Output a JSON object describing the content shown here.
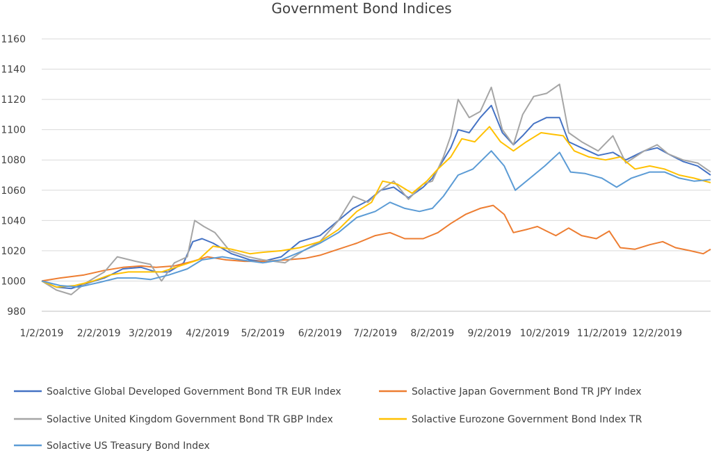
{
  "chart_data": {
    "type": "line",
    "title": "Government Bond Indices",
    "xlabel": "",
    "ylabel": "",
    "ylim": [
      980,
      1160
    ],
    "y_ticks": [
      980,
      1000,
      1020,
      1040,
      1060,
      1080,
      1100,
      1120,
      1140,
      1160
    ],
    "x_range": [
      "2019-01-02",
      "2019-12-31"
    ],
    "x_ticks": [
      "1/2/2019",
      "2/2/2019",
      "3/2/2019",
      "4/2/2019",
      "5/2/2019",
      "6/2/2019",
      "7/2/2019",
      "8/2/2019",
      "9/2/2019",
      "10/2/2019",
      "11/2/2019",
      "12/2/2019"
    ],
    "x_tick_dates": [
      "2019-01-02",
      "2019-02-02",
      "2019-03-02",
      "2019-04-02",
      "2019-05-02",
      "2019-06-02",
      "2019-07-02",
      "2019-08-02",
      "2019-09-02",
      "2019-10-02",
      "2019-11-02",
      "2019-12-02"
    ],
    "grid": "horizontal",
    "legend_position": "bottom",
    "series": [
      {
        "name": "Soalctive Global Developed Government Bond TR EUR Index",
        "color": "#4472C4",
        "points": [
          [
            "2019-01-02",
            1000
          ],
          [
            "2019-01-10",
            996
          ],
          [
            "2019-01-18",
            995
          ],
          [
            "2019-01-28",
            999
          ],
          [
            "2019-02-05",
            1002
          ],
          [
            "2019-02-15",
            1008
          ],
          [
            "2019-02-25",
            1009
          ],
          [
            "2019-03-05",
            1006
          ],
          [
            "2019-03-12",
            1006
          ],
          [
            "2019-03-20",
            1012
          ],
          [
            "2019-03-25",
            1026
          ],
          [
            "2019-03-30",
            1028
          ],
          [
            "2019-04-05",
            1025
          ],
          [
            "2019-04-15",
            1018
          ],
          [
            "2019-04-25",
            1014
          ],
          [
            "2019-05-02",
            1013
          ],
          [
            "2019-05-12",
            1016
          ],
          [
            "2019-05-22",
            1026
          ],
          [
            "2019-06-02",
            1030
          ],
          [
            "2019-06-12",
            1040
          ],
          [
            "2019-06-20",
            1048
          ],
          [
            "2019-06-28",
            1053
          ],
          [
            "2019-07-05",
            1060
          ],
          [
            "2019-07-12",
            1062
          ],
          [
            "2019-07-20",
            1055
          ],
          [
            "2019-07-28",
            1062
          ],
          [
            "2019-08-02",
            1068
          ],
          [
            "2019-08-08",
            1080
          ],
          [
            "2019-08-12",
            1088
          ],
          [
            "2019-08-16",
            1100
          ],
          [
            "2019-08-22",
            1098
          ],
          [
            "2019-08-28",
            1108
          ],
          [
            "2019-09-03",
            1116
          ],
          [
            "2019-09-09",
            1098
          ],
          [
            "2019-09-15",
            1090
          ],
          [
            "2019-09-20",
            1096
          ],
          [
            "2019-09-26",
            1104
          ],
          [
            "2019-10-03",
            1108
          ],
          [
            "2019-10-10",
            1108
          ],
          [
            "2019-10-15",
            1092
          ],
          [
            "2019-10-22",
            1088
          ],
          [
            "2019-10-31",
            1083
          ],
          [
            "2019-11-08",
            1085
          ],
          [
            "2019-11-15",
            1080
          ],
          [
            "2019-11-25",
            1086
          ],
          [
            "2019-12-02",
            1088
          ],
          [
            "2019-12-08",
            1084
          ],
          [
            "2019-12-16",
            1079
          ],
          [
            "2019-12-24",
            1076
          ],
          [
            "2019-12-31",
            1070
          ]
        ]
      },
      {
        "name": "Solactive Japan Government Bond TR JPY Index",
        "color": "#ED7D31",
        "points": [
          [
            "2019-01-02",
            1000
          ],
          [
            "2019-01-12",
            1002
          ],
          [
            "2019-01-25",
            1004
          ],
          [
            "2019-02-05",
            1007
          ],
          [
            "2019-02-15",
            1009
          ],
          [
            "2019-02-25",
            1010
          ],
          [
            "2019-03-05",
            1009
          ],
          [
            "2019-03-15",
            1010
          ],
          [
            "2019-03-25",
            1013
          ],
          [
            "2019-04-02",
            1016
          ],
          [
            "2019-04-12",
            1014
          ],
          [
            "2019-04-22",
            1013
          ],
          [
            "2019-05-02",
            1013
          ],
          [
            "2019-05-15",
            1014
          ],
          [
            "2019-05-25",
            1015
          ],
          [
            "2019-06-02",
            1017
          ],
          [
            "2019-06-12",
            1021
          ],
          [
            "2019-06-22",
            1025
          ],
          [
            "2019-07-02",
            1030
          ],
          [
            "2019-07-10",
            1032
          ],
          [
            "2019-07-18",
            1028
          ],
          [
            "2019-07-28",
            1028
          ],
          [
            "2019-08-05",
            1032
          ],
          [
            "2019-08-12",
            1038
          ],
          [
            "2019-08-20",
            1044
          ],
          [
            "2019-08-28",
            1048
          ],
          [
            "2019-09-04",
            1050
          ],
          [
            "2019-09-10",
            1044
          ],
          [
            "2019-09-15",
            1032
          ],
          [
            "2019-09-22",
            1034
          ],
          [
            "2019-09-28",
            1036
          ],
          [
            "2019-10-03",
            1033
          ],
          [
            "2019-10-08",
            1030
          ],
          [
            "2019-10-15",
            1035
          ],
          [
            "2019-10-22",
            1030
          ],
          [
            "2019-10-30",
            1028
          ],
          [
            "2019-11-06",
            1033
          ],
          [
            "2019-11-12",
            1022
          ],
          [
            "2019-11-20",
            1021
          ],
          [
            "2019-11-28",
            1024
          ],
          [
            "2019-12-05",
            1026
          ],
          [
            "2019-12-12",
            1022
          ],
          [
            "2019-12-20",
            1020
          ],
          [
            "2019-12-27",
            1018
          ],
          [
            "2019-12-31",
            1021
          ]
        ]
      },
      {
        "name": "Solactive United Kingdom Government Bond TR GBP Index",
        "color": "#A5A5A5",
        "points": [
          [
            "2019-01-02",
            1000
          ],
          [
            "2019-01-10",
            994
          ],
          [
            "2019-01-18",
            991
          ],
          [
            "2019-01-25",
            998
          ],
          [
            "2019-02-05",
            1006
          ],
          [
            "2019-02-12",
            1016
          ],
          [
            "2019-02-22",
            1013
          ],
          [
            "2019-03-02",
            1011
          ],
          [
            "2019-03-08",
            1000
          ],
          [
            "2019-03-15",
            1012
          ],
          [
            "2019-03-22",
            1016
          ],
          [
            "2019-03-26",
            1040
          ],
          [
            "2019-03-31",
            1036
          ],
          [
            "2019-04-06",
            1032
          ],
          [
            "2019-04-14",
            1020
          ],
          [
            "2019-04-24",
            1016
          ],
          [
            "2019-05-02",
            1014
          ],
          [
            "2019-05-14",
            1012
          ],
          [
            "2019-05-24",
            1020
          ],
          [
            "2019-06-02",
            1026
          ],
          [
            "2019-06-12",
            1040
          ],
          [
            "2019-06-20",
            1056
          ],
          [
            "2019-06-28",
            1052
          ],
          [
            "2019-07-05",
            1060
          ],
          [
            "2019-07-12",
            1066
          ],
          [
            "2019-07-20",
            1054
          ],
          [
            "2019-07-28",
            1064
          ],
          [
            "2019-08-02",
            1066
          ],
          [
            "2019-08-08",
            1082
          ],
          [
            "2019-08-12",
            1096
          ],
          [
            "2019-08-16",
            1120
          ],
          [
            "2019-08-22",
            1108
          ],
          [
            "2019-08-28",
            1112
          ],
          [
            "2019-09-03",
            1128
          ],
          [
            "2019-09-09",
            1100
          ],
          [
            "2019-09-15",
            1090
          ],
          [
            "2019-09-20",
            1110
          ],
          [
            "2019-09-26",
            1122
          ],
          [
            "2019-10-03",
            1124
          ],
          [
            "2019-10-10",
            1130
          ],
          [
            "2019-10-15",
            1098
          ],
          [
            "2019-10-22",
            1092
          ],
          [
            "2019-10-31",
            1086
          ],
          [
            "2019-11-08",
            1096
          ],
          [
            "2019-11-15",
            1078
          ],
          [
            "2019-11-25",
            1086
          ],
          [
            "2019-12-02",
            1090
          ],
          [
            "2019-12-08",
            1084
          ],
          [
            "2019-12-16",
            1080
          ],
          [
            "2019-12-24",
            1078
          ],
          [
            "2019-12-31",
            1072
          ]
        ]
      },
      {
        "name": "Solactive Eurozone Government Bond Index TR",
        "color": "#FFC000",
        "points": [
          [
            "2019-01-02",
            1000
          ],
          [
            "2019-01-10",
            996
          ],
          [
            "2019-01-20",
            997
          ],
          [
            "2019-01-30",
            1000
          ],
          [
            "2019-02-08",
            1004
          ],
          [
            "2019-02-18",
            1006
          ],
          [
            "2019-02-28",
            1006
          ],
          [
            "2019-03-08",
            1006
          ],
          [
            "2019-03-18",
            1010
          ],
          [
            "2019-03-28",
            1014
          ],
          [
            "2019-04-05",
            1023
          ],
          [
            "2019-04-15",
            1021
          ],
          [
            "2019-04-25",
            1018
          ],
          [
            "2019-05-02",
            1019
          ],
          [
            "2019-05-12",
            1020
          ],
          [
            "2019-05-22",
            1022
          ],
          [
            "2019-06-02",
            1026
          ],
          [
            "2019-06-12",
            1034
          ],
          [
            "2019-06-22",
            1046
          ],
          [
            "2019-06-30",
            1052
          ],
          [
            "2019-07-06",
            1066
          ],
          [
            "2019-07-14",
            1064
          ],
          [
            "2019-07-22",
            1058
          ],
          [
            "2019-07-30",
            1066
          ],
          [
            "2019-08-05",
            1074
          ],
          [
            "2019-08-12",
            1082
          ],
          [
            "2019-08-18",
            1094
          ],
          [
            "2019-08-25",
            1092
          ],
          [
            "2019-09-02",
            1102
          ],
          [
            "2019-09-08",
            1092
          ],
          [
            "2019-09-15",
            1086
          ],
          [
            "2019-09-22",
            1092
          ],
          [
            "2019-09-30",
            1098
          ],
          [
            "2019-10-06",
            1097
          ],
          [
            "2019-10-12",
            1096
          ],
          [
            "2019-10-18",
            1086
          ],
          [
            "2019-10-26",
            1082
          ],
          [
            "2019-11-04",
            1080
          ],
          [
            "2019-11-12",
            1082
          ],
          [
            "2019-11-20",
            1074
          ],
          [
            "2019-11-28",
            1076
          ],
          [
            "2019-12-06",
            1074
          ],
          [
            "2019-12-14",
            1070
          ],
          [
            "2019-12-22",
            1068
          ],
          [
            "2019-12-31",
            1065
          ]
        ]
      },
      {
        "name": "Solactive US Treasury Bond Index",
        "color": "#5B9BD5",
        "points": [
          [
            "2019-01-02",
            1000
          ],
          [
            "2019-01-12",
            997
          ],
          [
            "2019-01-22",
            996
          ],
          [
            "2019-02-02",
            999
          ],
          [
            "2019-02-12",
            1002
          ],
          [
            "2019-02-22",
            1002
          ],
          [
            "2019-03-02",
            1001
          ],
          [
            "2019-03-12",
            1004
          ],
          [
            "2019-03-22",
            1008
          ],
          [
            "2019-03-30",
            1014
          ],
          [
            "2019-04-10",
            1016
          ],
          [
            "2019-04-20",
            1014
          ],
          [
            "2019-05-02",
            1012
          ],
          [
            "2019-05-12",
            1014
          ],
          [
            "2019-05-22",
            1019
          ],
          [
            "2019-06-02",
            1025
          ],
          [
            "2019-06-12",
            1032
          ],
          [
            "2019-06-22",
            1042
          ],
          [
            "2019-07-02",
            1046
          ],
          [
            "2019-07-10",
            1052
          ],
          [
            "2019-07-18",
            1048
          ],
          [
            "2019-07-26",
            1046
          ],
          [
            "2019-08-02",
            1048
          ],
          [
            "2019-08-08",
            1056
          ],
          [
            "2019-08-16",
            1070
          ],
          [
            "2019-08-24",
            1074
          ],
          [
            "2019-09-03",
            1086
          ],
          [
            "2019-09-10",
            1076
          ],
          [
            "2019-09-16",
            1060
          ],
          [
            "2019-09-24",
            1068
          ],
          [
            "2019-10-02",
            1076
          ],
          [
            "2019-10-10",
            1085
          ],
          [
            "2019-10-16",
            1072
          ],
          [
            "2019-10-24",
            1071
          ],
          [
            "2019-11-02",
            1068
          ],
          [
            "2019-11-10",
            1062
          ],
          [
            "2019-11-18",
            1068
          ],
          [
            "2019-11-28",
            1072
          ],
          [
            "2019-12-06",
            1072
          ],
          [
            "2019-12-14",
            1068
          ],
          [
            "2019-12-22",
            1066
          ],
          [
            "2019-12-31",
            1067
          ]
        ]
      }
    ]
  }
}
